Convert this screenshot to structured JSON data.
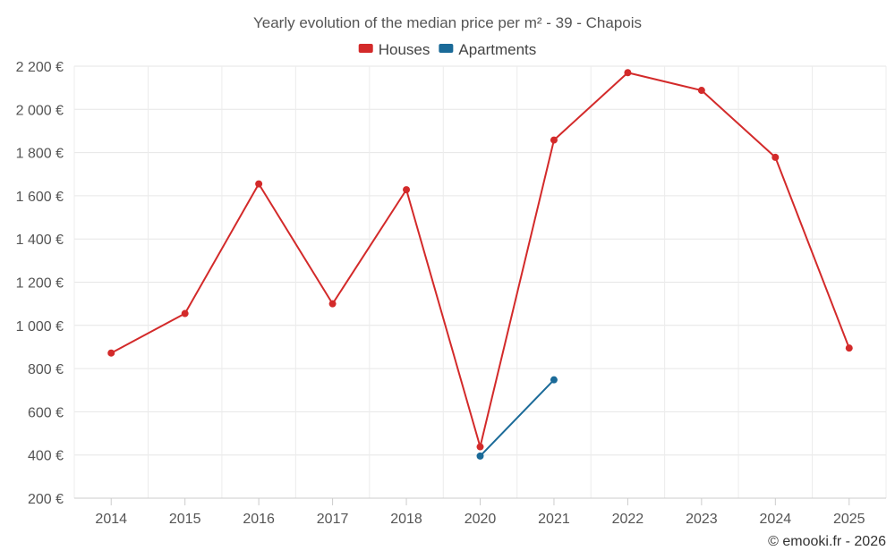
{
  "chart_data": {
    "type": "line",
    "title": "Yearly evolution of the median price per m² - 39 - Chapois",
    "categories": [
      "2014",
      "2015",
      "2016",
      "2017",
      "2018",
      "2020",
      "2021",
      "2022",
      "2023",
      "2024",
      "2025"
    ],
    "series": [
      {
        "name": "Houses",
        "color": "#d32a2a",
        "values": [
          872,
          1055,
          1655,
          1100,
          1628,
          438,
          1858,
          2170,
          2088,
          1778,
          895
        ]
      },
      {
        "name": "Apartments",
        "color": "#1a6a98",
        "values": [
          null,
          null,
          null,
          null,
          null,
          395,
          748,
          null,
          null,
          null,
          null
        ]
      }
    ],
    "ylim": [
      200,
      2200
    ],
    "yticks": [
      200,
      400,
      600,
      800,
      1000,
      1200,
      1400,
      1600,
      1800,
      2000,
      2200
    ],
    "ytick_labels": [
      "200 €",
      "400 €",
      "600 €",
      "800 €",
      "1 000 €",
      "1 200 €",
      "1 400 €",
      "1 600 €",
      "1 800 €",
      "2 000 €",
      "2 200 €"
    ],
    "xlabel": "",
    "ylabel": "",
    "grid": true,
    "legend_position": "top-center"
  },
  "credit": "© emooki.fr - 2026"
}
